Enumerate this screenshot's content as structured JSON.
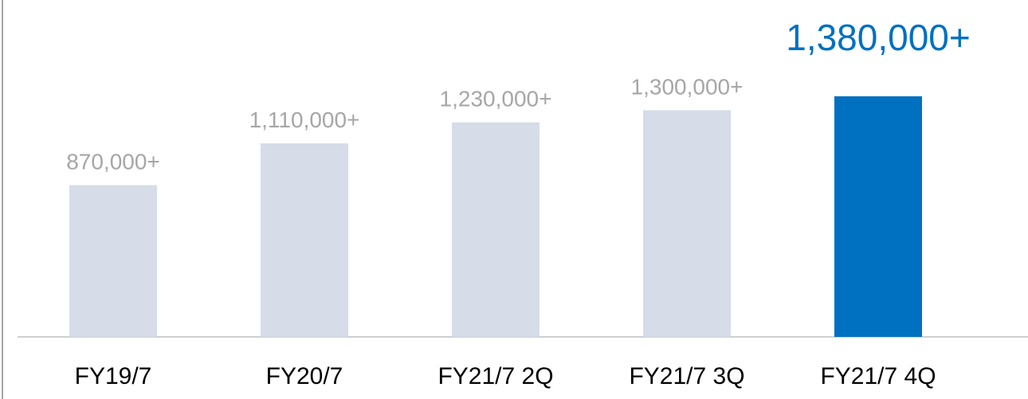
{
  "chart_data": {
    "type": "bar",
    "categories": [
      "FY19/7",
      "FY20/7",
      "FY21/7 2Q",
      "FY21/7 3Q",
      "FY21/7 4Q"
    ],
    "values": [
      870000,
      1110000,
      1230000,
      1300000,
      1380000
    ],
    "value_labels": [
      "870,000+",
      "1,110,000+",
      "1,230,000+",
      "1,300,000+",
      "1,380,000+"
    ],
    "colors": [
      "#d6dce8",
      "#d6dce8",
      "#d6dce8",
      "#d6dce8",
      "#0070c0"
    ],
    "label_colors": [
      "#a6a6a6",
      "#a6a6a6",
      "#a6a6a6",
      "#a6a6a6",
      "#0070c0"
    ],
    "ylim": [
      0,
      1900000
    ]
  }
}
